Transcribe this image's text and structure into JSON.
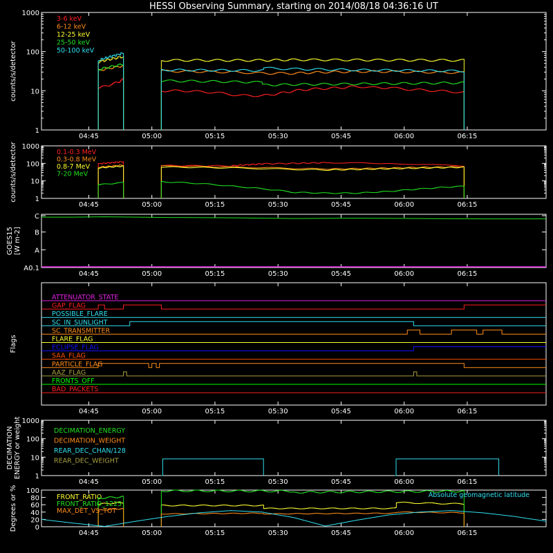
{
  "title": "HESSI Observing Summary, starting on 2014/08/18 04:36:16 UT",
  "time_ticks": [
    "04:45",
    "05:00",
    "05:15",
    "05:30",
    "05:45",
    "06:00",
    "06:15"
  ],
  "colors": {
    "background": "#000000",
    "white": "#ffffff",
    "red": "#ff2020",
    "orange": "#ff8c1a",
    "yellow": "#ffff30",
    "green": "#20e020",
    "cyan": "#30e0f0",
    "magenta": "#e020e0",
    "blue": "#1010ff",
    "darkyellow": "#a8a040",
    "brightgreen": "#00ff00",
    "orangered": "#ff5000"
  },
  "chart_data": [
    {
      "type": "line",
      "panel": "count_rates",
      "ylabel": "counts/s/detector",
      "yscale": "log",
      "ylim": [
        1,
        1000
      ],
      "y_ticks": [
        "1",
        "10",
        "100",
        "1000"
      ],
      "series": [
        {
          "name": "3-6 keV",
          "color": "red",
          "segments": [
            {
              "t": [
                4.9,
                5.0,
                5.18,
                5.3
              ],
              "y": [
                12,
                13,
                16,
                20
              ]
            },
            {
              "t": [
                5.9,
                6.0,
                6.25,
                6.5,
                6.75,
                7.0,
                7.25,
                7.5,
                7.75,
                8.0,
                8.25,
                8.5,
                8.75,
                9.0,
                9.25,
                9.5,
                9.75,
                10.0,
                10.25,
                10.5,
                10.7
              ],
              "y": [
                10,
                10,
                10,
                9.5,
                9,
                8,
                7.5,
                7.5,
                8.5,
                10,
                11,
                11.5,
                12,
                13,
                12,
                12,
                11,
                10.5,
                10,
                9.5,
                9
              ]
            }
          ]
        },
        {
          "name": "6-12 keV",
          "color": "orange",
          "segments": [
            {
              "t": [
                4.9,
                5.3
              ],
              "y": [
                33,
                44
              ]
            },
            {
              "t": [
                5.9,
                6.5,
                7.0,
                7.5,
                8.0,
                8.5,
                9.0,
                9.5,
                10.0,
                10.7
              ],
              "y": [
                32,
                31,
                30,
                28,
                28,
                30,
                31,
                31,
                30,
                29
              ]
            }
          ]
        },
        {
          "name": "12-25 keV",
          "color": "yellow",
          "segments": [
            {
              "t": [
                4.9,
                5.3
              ],
              "y": [
                55,
                75
              ]
            },
            {
              "t": [
                5.9,
                7.5,
                8.0,
                10.7
              ],
              "y": [
                60,
                60,
                62,
                60
              ]
            }
          ]
        },
        {
          "name": "25-50 keV",
          "color": "green",
          "segments": [
            {
              "t": [
                4.9,
                5.3
              ],
              "y": [
                35,
                48
              ]
            },
            {
              "t": [
                5.9,
                6.5,
                7.0,
                7.48,
                7.5,
                8.0,
                9.0,
                10.7
              ],
              "y": [
                18,
                17.5,
                17,
                16.5,
                14,
                14.5,
                15,
                16
              ]
            }
          ]
        },
        {
          "name": "50-100 keV",
          "color": "cyan",
          "segments": [
            {
              "t": [
                4.9,
                5.3
              ],
              "y": [
                60,
                92
              ]
            },
            {
              "t": [
                5.9,
                7.5,
                7.52,
                8.0,
                9.0,
                10.7
              ],
              "y": [
                34,
                33,
                38,
                36,
                34,
                32
              ]
            }
          ]
        }
      ]
    },
    {
      "type": "line",
      "panel": "high_energy",
      "ylabel": "counts/s/detector",
      "yscale": "log",
      "ylim": [
        1,
        1000
      ],
      "y_ticks": [
        "1",
        "10",
        "100",
        "1000"
      ],
      "series": [
        {
          "name": "0.1-0.3 MeV",
          "color": "red",
          "segments": [
            {
              "t": [
                4.9,
                5.3
              ],
              "y": [
                95,
                125
              ]
            },
            {
              "t": [
                5.9,
                7.0,
                7.52,
                8.0,
                8.5,
                9.0,
                9.5,
                10.7
              ],
              "y": [
                75,
                72,
                95,
                100,
                110,
                105,
                100,
                70
              ]
            }
          ]
        },
        {
          "name": "0.3-0.8 MeV",
          "color": "orange",
          "segments": [
            {
              "t": [
                4.9,
                5.3
              ],
              "y": [
                60,
                80
              ]
            },
            {
              "t": [
                5.9,
                7.0,
                8.0,
                8.5,
                9.0,
                10.7
              ],
              "y": [
                70,
                62,
                52,
                48,
                50,
                65
              ]
            }
          ]
        },
        {
          "name": "0.8-7 MeV",
          "color": "yellow",
          "segments": [
            {
              "t": [
                4.9,
                5.3
              ],
              "y": [
                55,
                70
              ]
            },
            {
              "t": [
                5.9,
                7.0,
                8.0,
                8.5,
                9.0,
                10.7
              ],
              "y": [
                62,
                55,
                45,
                42,
                45,
                60
              ]
            }
          ]
        },
        {
          "name": "7-20 MeV",
          "color": "green",
          "segments": [
            {
              "t": [
                4.9,
                5.3
              ],
              "y": [
                6,
                8
              ]
            },
            {
              "t": [
                5.9,
                6.5,
                7.0,
                7.5,
                8.0,
                8.5,
                9.0,
                9.5,
                10.0,
                10.7
              ],
              "y": [
                9,
                7,
                5,
                3.5,
                2.2,
                2.0,
                2.0,
                2.5,
                3.5,
                5
              ]
            }
          ]
        }
      ]
    },
    {
      "type": "line",
      "panel": "goes",
      "ylabel": "GOES15",
      "ylabel2": "[W m-2]",
      "y_ticks": [
        "A0.1",
        "A",
        "B",
        "C"
      ],
      "series": [
        {
          "name": "GOES15",
          "color": "green",
          "segments": [
            {
              "t": [
                4.0,
                4.5,
                5.0,
                6.0,
                7.0,
                8.0,
                9.0,
                10.0,
                11.0,
                12.0
              ],
              "y": [
                2.84,
                2.84,
                2.86,
                2.82,
                2.8,
                2.76,
                2.78,
                2.76,
                2.74,
                2.74
              ]
            }
          ]
        }
      ]
    },
    {
      "type": "line",
      "panel": "flags",
      "ylabel": "Flags",
      "series": [
        {
          "name": "ATTENUATOR_STATE",
          "color": "magenta",
          "changes": []
        },
        {
          "name": "GAP_FLAG",
          "color": "red",
          "changes": [
            [
              4.9,
              1
            ],
            [
              5.0,
              0
            ],
            [
              5.3,
              1
            ],
            [
              5.9,
              0
            ],
            [
              10.7,
              1
            ]
          ]
        },
        {
          "name": "POSSIBLE_FLARE",
          "color": "cyan",
          "changes": []
        },
        {
          "name": "SC_IN_SUNLIGHT",
          "color": "cyan",
          "changes": [
            [
              5.4,
              1
            ],
            [
              9.9,
              0
            ]
          ]
        },
        {
          "name": "SC_TRANSMITTER",
          "color": "orange",
          "changes": [
            [
              9.8,
              1
            ],
            [
              10.0,
              0
            ],
            [
              10.5,
              1
            ],
            [
              10.9,
              0
            ],
            [
              11.0,
              1
            ],
            [
              11.3,
              0
            ]
          ]
        },
        {
          "name": "FLARE_FLAG",
          "color": "yellow",
          "changes": []
        },
        {
          "name": "ECLIPSE_FLAG",
          "color": "blue",
          "changes": [
            [
              5.4,
              0
            ],
            [
              9.9,
              1
            ]
          ]
        },
        {
          "name": "SAA_FLAG",
          "color": "orangered",
          "changes": [
            [
              5.8,
              0
            ]
          ]
        },
        {
          "name": "PARTICLE_FLAG",
          "color": "orange",
          "changes": [
            [
              4.9,
              1
            ],
            [
              5.7,
              0
            ],
            [
              5.75,
              1
            ],
            [
              5.82,
              0
            ],
            [
              5.87,
              1
            ],
            [
              10.7,
              0
            ]
          ]
        },
        {
          "name": "AAZ_FLAG",
          "color": "darkyellow",
          "changes": [
            [
              5.3,
              1
            ],
            [
              5.35,
              0
            ],
            [
              9.9,
              1
            ],
            [
              9.95,
              0
            ]
          ]
        },
        {
          "name": "FRONTS_OFF",
          "color": "brightgreen",
          "changes": []
        },
        {
          "name": "BAD_PACKETS",
          "color": "red",
          "changes": []
        }
      ]
    },
    {
      "type": "line",
      "panel": "decimation",
      "ylabel": "DECIMATION",
      "ylabel2": "ENERGY or weight",
      "yscale": "log",
      "ylim": [
        1,
        1000
      ],
      "y_ticks": [
        "1",
        "10",
        "100",
        "1000"
      ],
      "series": [
        {
          "name": "DECIMATION_ENERGY",
          "color": "green",
          "segments": []
        },
        {
          "name": "DECIMATION_WEIGHT",
          "color": "orange",
          "segments": []
        },
        {
          "name": "REAR_DEC_CHAN/128",
          "color": "cyan",
          "segments": [
            {
              "t": [
                5.9,
                5.9,
                7.52,
                7.52
              ],
              "y": [
                1,
                8,
                8,
                1
              ]
            },
            {
              "t": [
                9.6,
                9.6,
                11.25,
                11.25
              ],
              "y": [
                1,
                8,
                8,
                1
              ]
            }
          ]
        },
        {
          "name": "REAR_DEC_WEIGHT",
          "color": "darkyellow",
          "segments": []
        }
      ]
    },
    {
      "type": "line",
      "panel": "ratios",
      "ylabel": "Degrees or %",
      "ylim": [
        0,
        100
      ],
      "y_ticks": [
        "0",
        "20",
        "40",
        "60",
        "80",
        "100"
      ],
      "annotation": "Absolute geomagnetic latitude",
      "series": [
        {
          "name": "FRONT_RATIO",
          "color": "yellow",
          "segments": [
            {
              "t": [
                4.9,
                5.3
              ],
              "y": [
                62,
                66
              ]
            },
            {
              "t": [
                5.9,
                7.5,
                7.52,
                9.6,
                9.62,
                10.7
              ],
              "y": [
                58,
                58,
                50,
                50,
                66,
                62
              ]
            }
          ]
        },
        {
          "name": "FRONT_RATIO_1225",
          "color": "green",
          "segments": [
            {
              "t": [
                4.9,
                5.3
              ],
              "y": [
                78,
                82
              ]
            },
            {
              "t": [
                5.9,
                8.0,
                8.02,
                10.7
              ],
              "y": [
                98,
                97,
                94,
                97
              ]
            }
          ]
        },
        {
          "name": "MAX_DET_VS_TOT",
          "color": "orange",
          "segments": [
            {
              "t": [
                4.9,
                5.3
              ],
              "y": [
                45,
                50
              ]
            },
            {
              "t": [
                5.9,
                7.5,
                7.52,
                9.6,
                9.62,
                10.7
              ],
              "y": [
                35,
                37,
                35,
                37,
                40,
                38
              ]
            }
          ]
        },
        {
          "name": "Absolute geomagnetic latitude",
          "color": "cyan",
          "segments": [
            {
              "t": [
                4.0,
                4.5,
                5.0,
                5.5,
                6.0,
                6.5,
                7.0,
                7.5,
                8.0,
                8.5,
                9.0,
                9.5,
                10.0,
                10.5,
                11.0,
                11.5,
                12.0
              ],
              "y": [
                20,
                10,
                1,
                15,
                28,
                38,
                44,
                40,
                25,
                2,
                18,
                32,
                40,
                44,
                38,
                28,
                15
              ]
            }
          ]
        }
      ]
    }
  ]
}
